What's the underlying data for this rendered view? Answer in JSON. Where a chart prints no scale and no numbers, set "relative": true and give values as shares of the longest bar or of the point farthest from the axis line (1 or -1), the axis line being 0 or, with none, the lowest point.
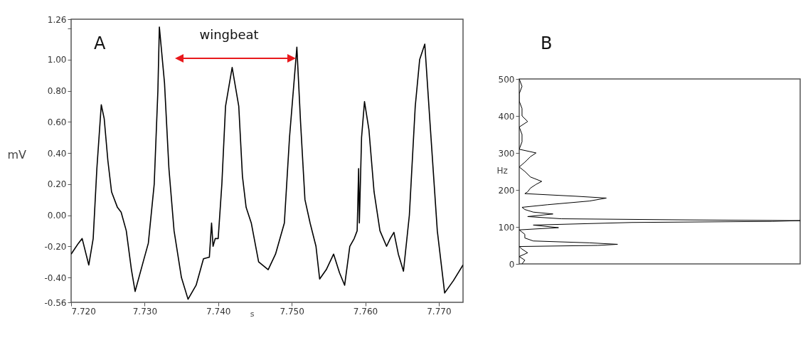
{
  "chart_data": [
    {
      "type": "line",
      "title": "A",
      "xlabel": "s",
      "ylabel": "mV",
      "annotations": [
        "wingbeat"
      ],
      "xlim": [
        7.72,
        7.7733
      ],
      "ylim": [
        -0.56,
        1.26
      ],
      "xticks": [
        {
          "value": 7.72,
          "label": "7.720"
        },
        {
          "value": 7.73,
          "label": "7.730"
        },
        {
          "value": 7.74,
          "label": "7.740"
        },
        {
          "value": 7.75,
          "label": "7.750"
        },
        {
          "value": 7.76,
          "label": "7.760"
        },
        {
          "value": 7.77,
          "label": "7.770"
        }
      ],
      "yticks": [
        {
          "value": -0.56,
          "label": "-0.56"
        },
        {
          "value": -0.4,
          "label": "-0.40"
        },
        {
          "value": -0.2,
          "label": "-0.20"
        },
        {
          "value": 0,
          "label": "0.00"
        },
        {
          "value": 0.2,
          "label": "0.20"
        },
        {
          "value": 0.4,
          "label": "0.40"
        },
        {
          "value": 0.6,
          "label": "0.60"
        },
        {
          "value": 0.8,
          "label": "0.80"
        },
        {
          "value": 1,
          "label": "1.00"
        },
        {
          "value": 1.2,
          "label": null
        },
        {
          "value": 1.26,
          "label": "1.26"
        }
      ],
      "x": [
        7.72,
        7.721,
        7.7215,
        7.7224,
        7.723,
        7.7235,
        7.7241,
        7.7245,
        7.725,
        7.7255,
        7.7263,
        7.7268,
        7.7275,
        7.7282,
        7.7287,
        7.7298,
        7.7305,
        7.7313,
        7.7318,
        7.732,
        7.7327,
        7.7333,
        7.734,
        7.735,
        7.7359,
        7.737,
        7.738,
        7.7388,
        7.7391,
        7.7393,
        7.7396,
        7.74,
        7.7405,
        7.741,
        7.7419,
        7.7428,
        7.7433,
        7.7438,
        7.7445,
        7.7455,
        7.7468,
        7.7478,
        7.749,
        7.7497,
        7.7507,
        7.7512,
        7.7518,
        7.7525,
        7.7533,
        7.7538,
        7.7547,
        7.7557,
        7.7565,
        7.7572,
        7.7579,
        7.7585,
        7.7589,
        7.7591,
        7.7592,
        7.7595,
        7.7599,
        7.7605,
        7.7612,
        7.762,
        7.7629,
        7.7634,
        7.7639,
        7.7645,
        7.7652,
        7.766,
        7.7668,
        7.7674,
        7.7681,
        7.7688,
        7.7698,
        7.7708,
        7.772,
        7.7733
      ],
      "series": [
        {
          "color": "#000000",
          "values": [
            -0.25,
            -0.18,
            -0.15,
            -0.32,
            -0.15,
            0.3,
            0.71,
            0.62,
            0.35,
            0.15,
            0.05,
            0.02,
            -0.1,
            -0.35,
            -0.49,
            -0.3,
            -0.18,
            0.2,
            0.8,
            1.21,
            0.85,
            0.3,
            -0.1,
            -0.4,
            -0.54,
            -0.45,
            -0.28,
            -0.27,
            -0.05,
            -0.2,
            -0.15,
            -0.15,
            0.2,
            0.7,
            0.95,
            0.7,
            0.25,
            0.05,
            -0.05,
            -0.3,
            -0.35,
            -0.25,
            -0.05,
            0.5,
            1.08,
            0.6,
            0.1,
            -0.05,
            -0.2,
            -0.41,
            -0.35,
            -0.25,
            -0.37,
            -0.45,
            -0.2,
            -0.15,
            -0.1,
            0.3,
            -0.05,
            0.5,
            0.73,
            0.55,
            0.15,
            -0.1,
            -0.2,
            -0.15,
            -0.11,
            -0.25,
            -0.36,
            0,
            0.7,
            1.0,
            1.1,
            0.6,
            -0.1,
            -0.5,
            -0.42,
            -0.32
          ]
        }
      ]
    },
    {
      "type": "line",
      "title": "B",
      "ylabel": "Hz",
      "orientation": "horizontal",
      "relative": true,
      "tick_labels": "y",
      "ylim": [
        0,
        500
      ],
      "yticks": [
        0,
        100,
        200,
        300,
        400,
        500
      ],
      "x": [
        0,
        10,
        20,
        30,
        40,
        47,
        50,
        53,
        57,
        62,
        70,
        80,
        92,
        98,
        105,
        112,
        115,
        117,
        119,
        122,
        128,
        135,
        140,
        147,
        153,
        160,
        170,
        178,
        183,
        190,
        195,
        205,
        215,
        223,
        235,
        250,
        262,
        275,
        290,
        300,
        310,
        330,
        350,
        370,
        385,
        400,
        420,
        440,
        460,
        480,
        500
      ],
      "series": [
        {
          "color": "#000000",
          "values": [
            0.01,
            0.02,
            0,
            0.03,
            0.01,
            0,
            0.28,
            0.35,
            0.25,
            0.05,
            0.02,
            0.02,
            0,
            0.14,
            0.05,
            0.4,
            0.9,
            1,
            0.6,
            0.15,
            0.03,
            0.12,
            0.05,
            0.02,
            0.01,
            0.1,
            0.25,
            0.31,
            0.2,
            0.02,
            0.03,
            0.04,
            0.06,
            0.08,
            0.04,
            0.02,
            0,
            0.02,
            0.04,
            0.06,
            0,
            0.01,
            0.01,
            0,
            0.03,
            0.01,
            0.01,
            0,
            0,
            0.01,
            0
          ]
        }
      ]
    }
  ]
}
